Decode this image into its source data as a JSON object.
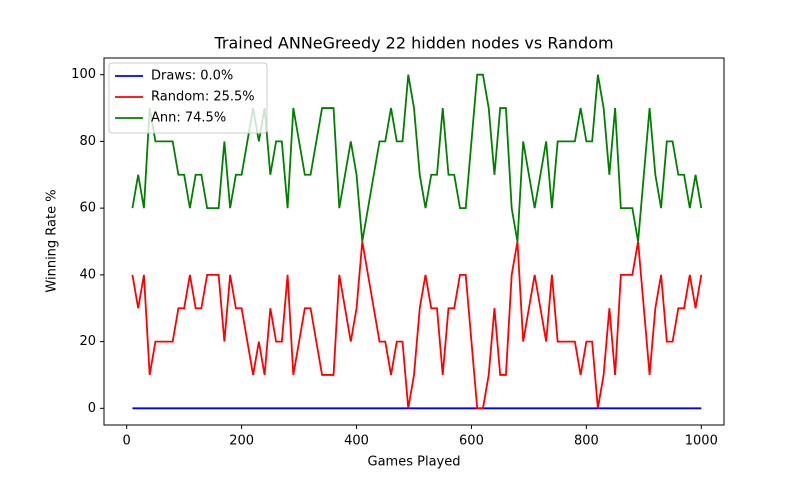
{
  "chart_data": {
    "type": "line",
    "title": "Trained ANNeGreedy 22 hidden nodes vs Random",
    "x_label": "Games Played",
    "y_label": "Winning Rate %",
    "x": [
      10,
      20,
      30,
      40,
      50,
      60,
      70,
      80,
      90,
      100,
      110,
      120,
      130,
      140,
      150,
      160,
      170,
      180,
      190,
      200,
      210,
      220,
      230,
      240,
      250,
      260,
      270,
      280,
      290,
      300,
      310,
      320,
      330,
      340,
      350,
      360,
      370,
      380,
      390,
      400,
      410,
      420,
      430,
      440,
      450,
      460,
      470,
      480,
      490,
      500,
      510,
      520,
      530,
      540,
      550,
      560,
      570,
      580,
      590,
      600,
      610,
      620,
      630,
      640,
      650,
      660,
      670,
      680,
      690,
      700,
      710,
      720,
      730,
      740,
      750,
      760,
      770,
      780,
      790,
      800,
      810,
      820,
      830,
      840,
      850,
      860,
      870,
      880,
      890,
      900,
      910,
      920,
      930,
      940,
      950,
      960,
      970,
      980,
      990,
      1000
    ],
    "series": [
      {
        "name": "Draws: 0.0%",
        "color": "#0000ff",
        "values": [
          0,
          0,
          0,
          0,
          0,
          0,
          0,
          0,
          0,
          0,
          0,
          0,
          0,
          0,
          0,
          0,
          0,
          0,
          0,
          0,
          0,
          0,
          0,
          0,
          0,
          0,
          0,
          0,
          0,
          0,
          0,
          0,
          0,
          0,
          0,
          0,
          0,
          0,
          0,
          0,
          0,
          0,
          0,
          0,
          0,
          0,
          0,
          0,
          0,
          0,
          0,
          0,
          0,
          0,
          0,
          0,
          0,
          0,
          0,
          0,
          0,
          0,
          0,
          0,
          0,
          0,
          0,
          0,
          0,
          0,
          0,
          0,
          0,
          0,
          0,
          0,
          0,
          0,
          0,
          0,
          0,
          0,
          0,
          0,
          0,
          0,
          0,
          0,
          0,
          0,
          0,
          0,
          0,
          0,
          0,
          0,
          0,
          0,
          0,
          0
        ]
      },
      {
        "name": "Random: 25.5%",
        "color": "#ff0000",
        "values": [
          40,
          30,
          40,
          10,
          20,
          20,
          20,
          20,
          30,
          30,
          40,
          30,
          30,
          40,
          40,
          40,
          20,
          40,
          30,
          30,
          20,
          10,
          20,
          10,
          30,
          20,
          20,
          40,
          10,
          20,
          30,
          30,
          20,
          10,
          10,
          10,
          40,
          30,
          20,
          30,
          50,
          40,
          30,
          20,
          20,
          10,
          20,
          20,
          0,
          10,
          30,
          40,
          30,
          30,
          10,
          30,
          30,
          40,
          40,
          20,
          0,
          0,
          10,
          30,
          10,
          10,
          40,
          50,
          20,
          30,
          40,
          30,
          20,
          40,
          20,
          20,
          20,
          20,
          10,
          20,
          20,
          0,
          10,
          30,
          10,
          40,
          40,
          40,
          50,
          30,
          10,
          30,
          40,
          20,
          20,
          30,
          30,
          40,
          30,
          40
        ]
      },
      {
        "name": "Ann: 74.5%",
        "color": "#008000",
        "values": [
          60,
          70,
          60,
          90,
          80,
          80,
          80,
          80,
          70,
          70,
          60,
          70,
          70,
          60,
          60,
          60,
          80,
          60,
          70,
          70,
          80,
          90,
          80,
          90,
          70,
          80,
          80,
          60,
          90,
          80,
          70,
          70,
          80,
          90,
          90,
          90,
          60,
          70,
          80,
          70,
          50,
          60,
          70,
          80,
          80,
          90,
          80,
          80,
          100,
          90,
          70,
          60,
          70,
          70,
          90,
          70,
          70,
          60,
          60,
          80,
          100,
          100,
          90,
          70,
          90,
          90,
          60,
          50,
          80,
          70,
          60,
          70,
          80,
          60,
          80,
          80,
          80,
          80,
          90,
          80,
          80,
          100,
          90,
          70,
          90,
          60,
          60,
          60,
          50,
          70,
          90,
          70,
          60,
          80,
          80,
          70,
          70,
          60,
          70,
          60
        ]
      }
    ],
    "xlim": [
      -39.5,
      1039.5
    ],
    "ylim": [
      -5,
      105
    ],
    "xticks": [
      0,
      200,
      400,
      600,
      800,
      1000
    ],
    "yticks": [
      0,
      20,
      40,
      60,
      80,
      100
    ],
    "legend": "upper-left"
  }
}
